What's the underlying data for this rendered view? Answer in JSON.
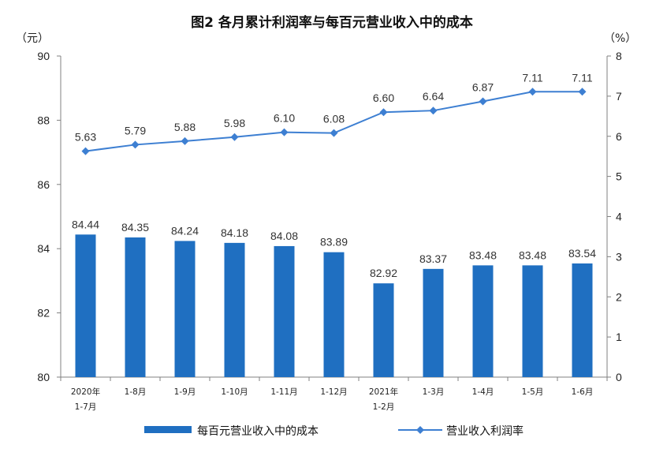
{
  "chart_data": {
    "type": "bar",
    "title": "图2  各月累计利润率与每百元营业收入中的成本",
    "categories": [
      "2020年\n1-7月",
      "1-8月",
      "1-9月",
      "1-10月",
      "1-11月",
      "1-12月",
      "2021年\n1-2月",
      "1-3月",
      "1-4月",
      "1-5月",
      "1-6月"
    ],
    "series": [
      {
        "name": "每百元营业收入中的成本",
        "type": "bar",
        "axis": "left",
        "values": [
          84.44,
          84.35,
          84.24,
          84.18,
          84.08,
          83.89,
          82.92,
          83.37,
          83.48,
          83.48,
          83.54
        ]
      },
      {
        "name": "营业收入利润率",
        "type": "line",
        "axis": "right",
        "values": [
          5.63,
          5.79,
          5.88,
          5.98,
          6.1,
          6.08,
          6.6,
          6.64,
          6.87,
          7.11,
          7.11
        ]
      }
    ],
    "y_left": {
      "unit_label": "（元）",
      "ylim": [
        80,
        90
      ],
      "ticks": [
        80,
        82,
        84,
        86,
        88,
        90
      ]
    },
    "y_right": {
      "unit_label": "（%）",
      "ylim": [
        0,
        8
      ],
      "ticks": [
        0,
        1,
        2,
        3,
        4,
        5,
        6,
        7,
        8
      ]
    },
    "grid": false,
    "legend": "bottom",
    "colors": {
      "bar": "#1f6fc1",
      "line": "#3d7fd2",
      "axis": "#808080"
    }
  }
}
